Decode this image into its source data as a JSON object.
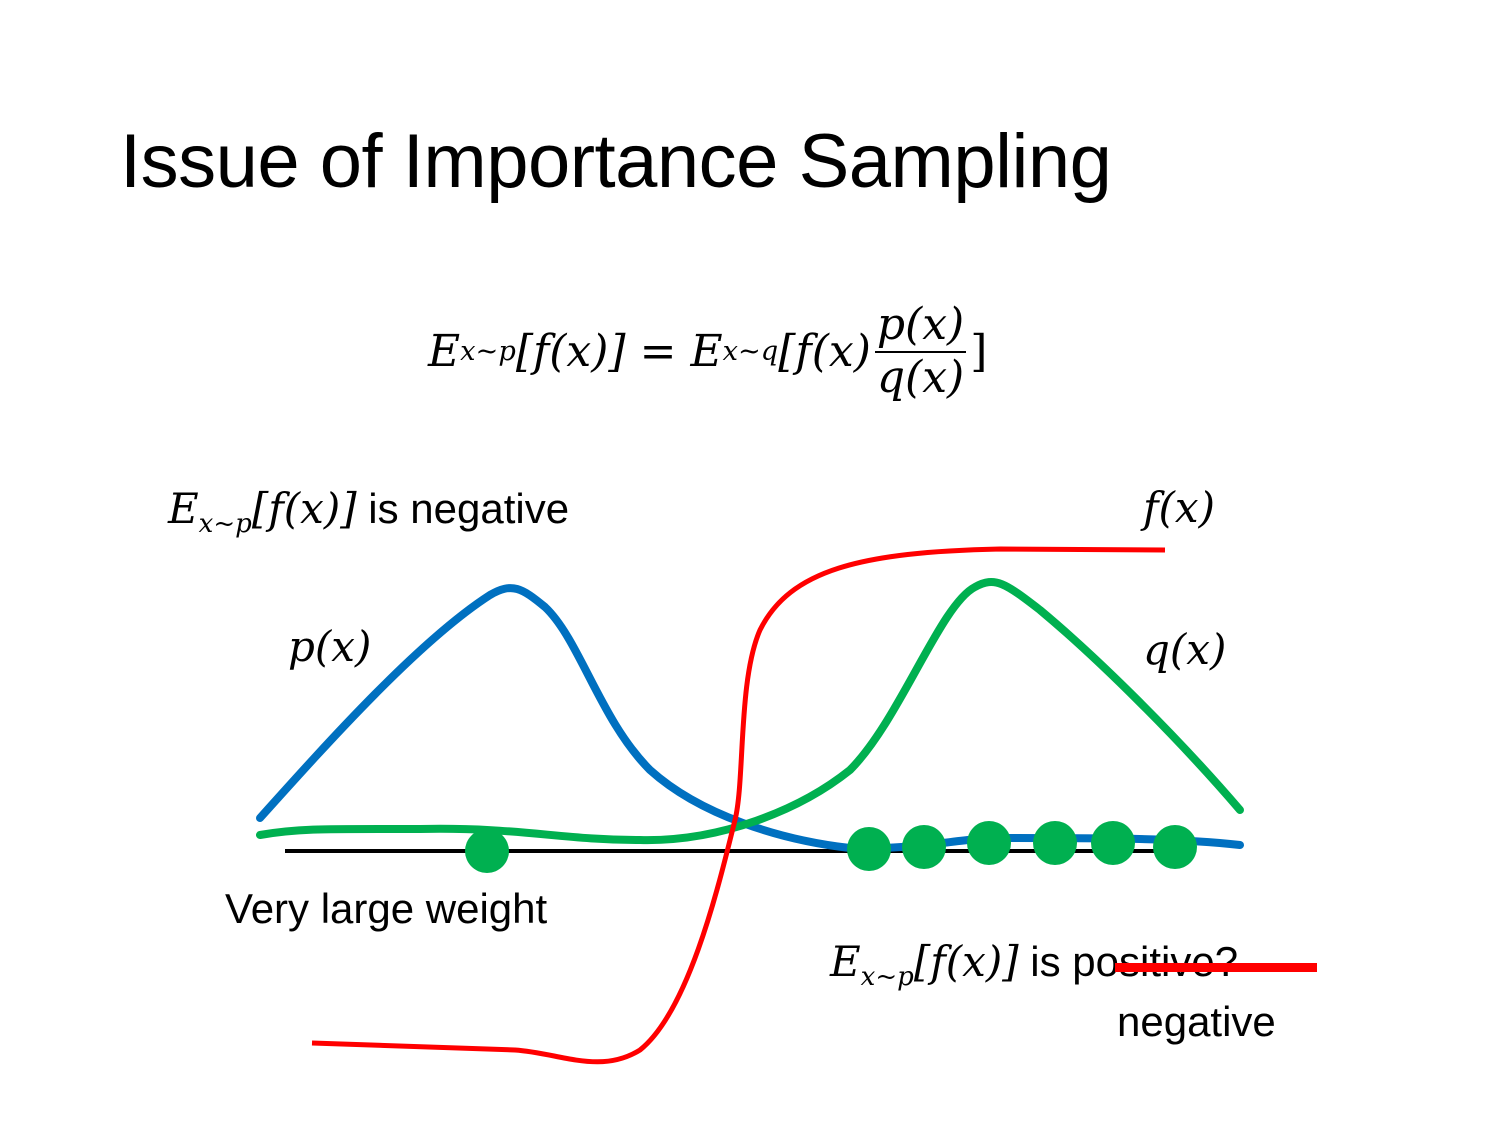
{
  "title": "Issue of Importance Sampling",
  "equation": {
    "lhs_E": "E",
    "lhs_sub": "x~p",
    "lhs_arg": "[f(x)]",
    "equals": "=",
    "rhs_E": "E",
    "rhs_sub": "x~q",
    "rhs_arg_open": "[f(x)",
    "frac_num": "p(x)",
    "frac_den": "q(x)",
    "rhs_close": "]"
  },
  "top_label": {
    "E": "E",
    "sub": "x~p",
    "arg": "[f(x)]",
    "text": "is negative"
  },
  "curve_labels": {
    "p": "p(x)",
    "q": "q(x)",
    "f": "f(x)"
  },
  "weight_label": "Very large weight",
  "bottom_label": {
    "E": "E",
    "sub": "x~p",
    "arg": "[f(x)]",
    "is": "is",
    "struck": "positive?",
    "correction": "negative"
  },
  "colors": {
    "p": "#0070c0",
    "q": "#00b050",
    "f": "#ff0000",
    "axis": "#000000",
    "strike": "#ff0000"
  }
}
